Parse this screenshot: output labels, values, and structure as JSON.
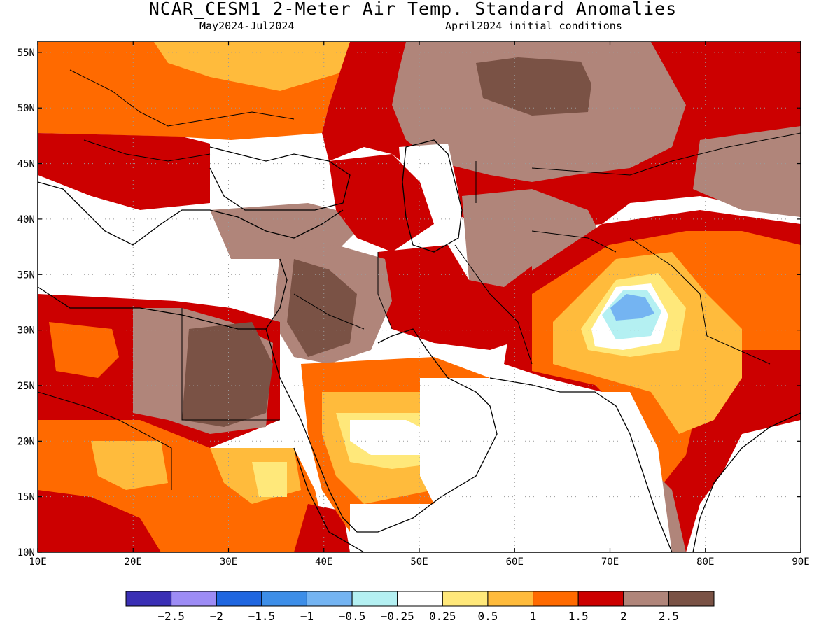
{
  "header": {
    "title": "NCAR_CESM1 2-Meter Air Temp. Standard Anomalies",
    "period": "May2024-Jul2024",
    "init": "April2024 initial conditions"
  },
  "map": {
    "lon_range": [
      10,
      90
    ],
    "lat_range": [
      10,
      56
    ],
    "lon_ticks": [
      {
        "value": 10,
        "label": "10E"
      },
      {
        "value": 20,
        "label": "20E"
      },
      {
        "value": 30,
        "label": "30E"
      },
      {
        "value": 40,
        "label": "40E"
      },
      {
        "value": 50,
        "label": "50E"
      },
      {
        "value": 60,
        "label": "60E"
      },
      {
        "value": 70,
        "label": "70E"
      },
      {
        "value": 80,
        "label": "80E"
      },
      {
        "value": 90,
        "label": "90E"
      }
    ],
    "lat_ticks": [
      {
        "value": 10,
        "label": "10N"
      },
      {
        "value": 15,
        "label": "15N"
      },
      {
        "value": 20,
        "label": "20N"
      },
      {
        "value": 25,
        "label": "25N"
      },
      {
        "value": 30,
        "label": "30N"
      },
      {
        "value": 35,
        "label": "35N"
      },
      {
        "value": 40,
        "label": "40N"
      },
      {
        "value": 45,
        "label": "45N"
      },
      {
        "value": 50,
        "label": "50N"
      },
      {
        "value": 55,
        "label": "55N"
      }
    ],
    "grid": "dotted"
  },
  "colorbar": {
    "colors": [
      "#3a2fb5",
      "#9d8cf5",
      "#1f66e0",
      "#3d8ee8",
      "#74b4f2",
      "#b4f0f2",
      "#ffffff",
      "#ffe87a",
      "#ffbb3c",
      "#ff6a00",
      "#cc0000",
      "#b0857a",
      "#7a5245"
    ],
    "labels": [
      "−2.5",
      "−2",
      "−1.5",
      "−1",
      "−0.5",
      "−0.25",
      "0.25",
      "0.5",
      "1",
      "1.5",
      "2",
      "2.5"
    ]
  }
}
